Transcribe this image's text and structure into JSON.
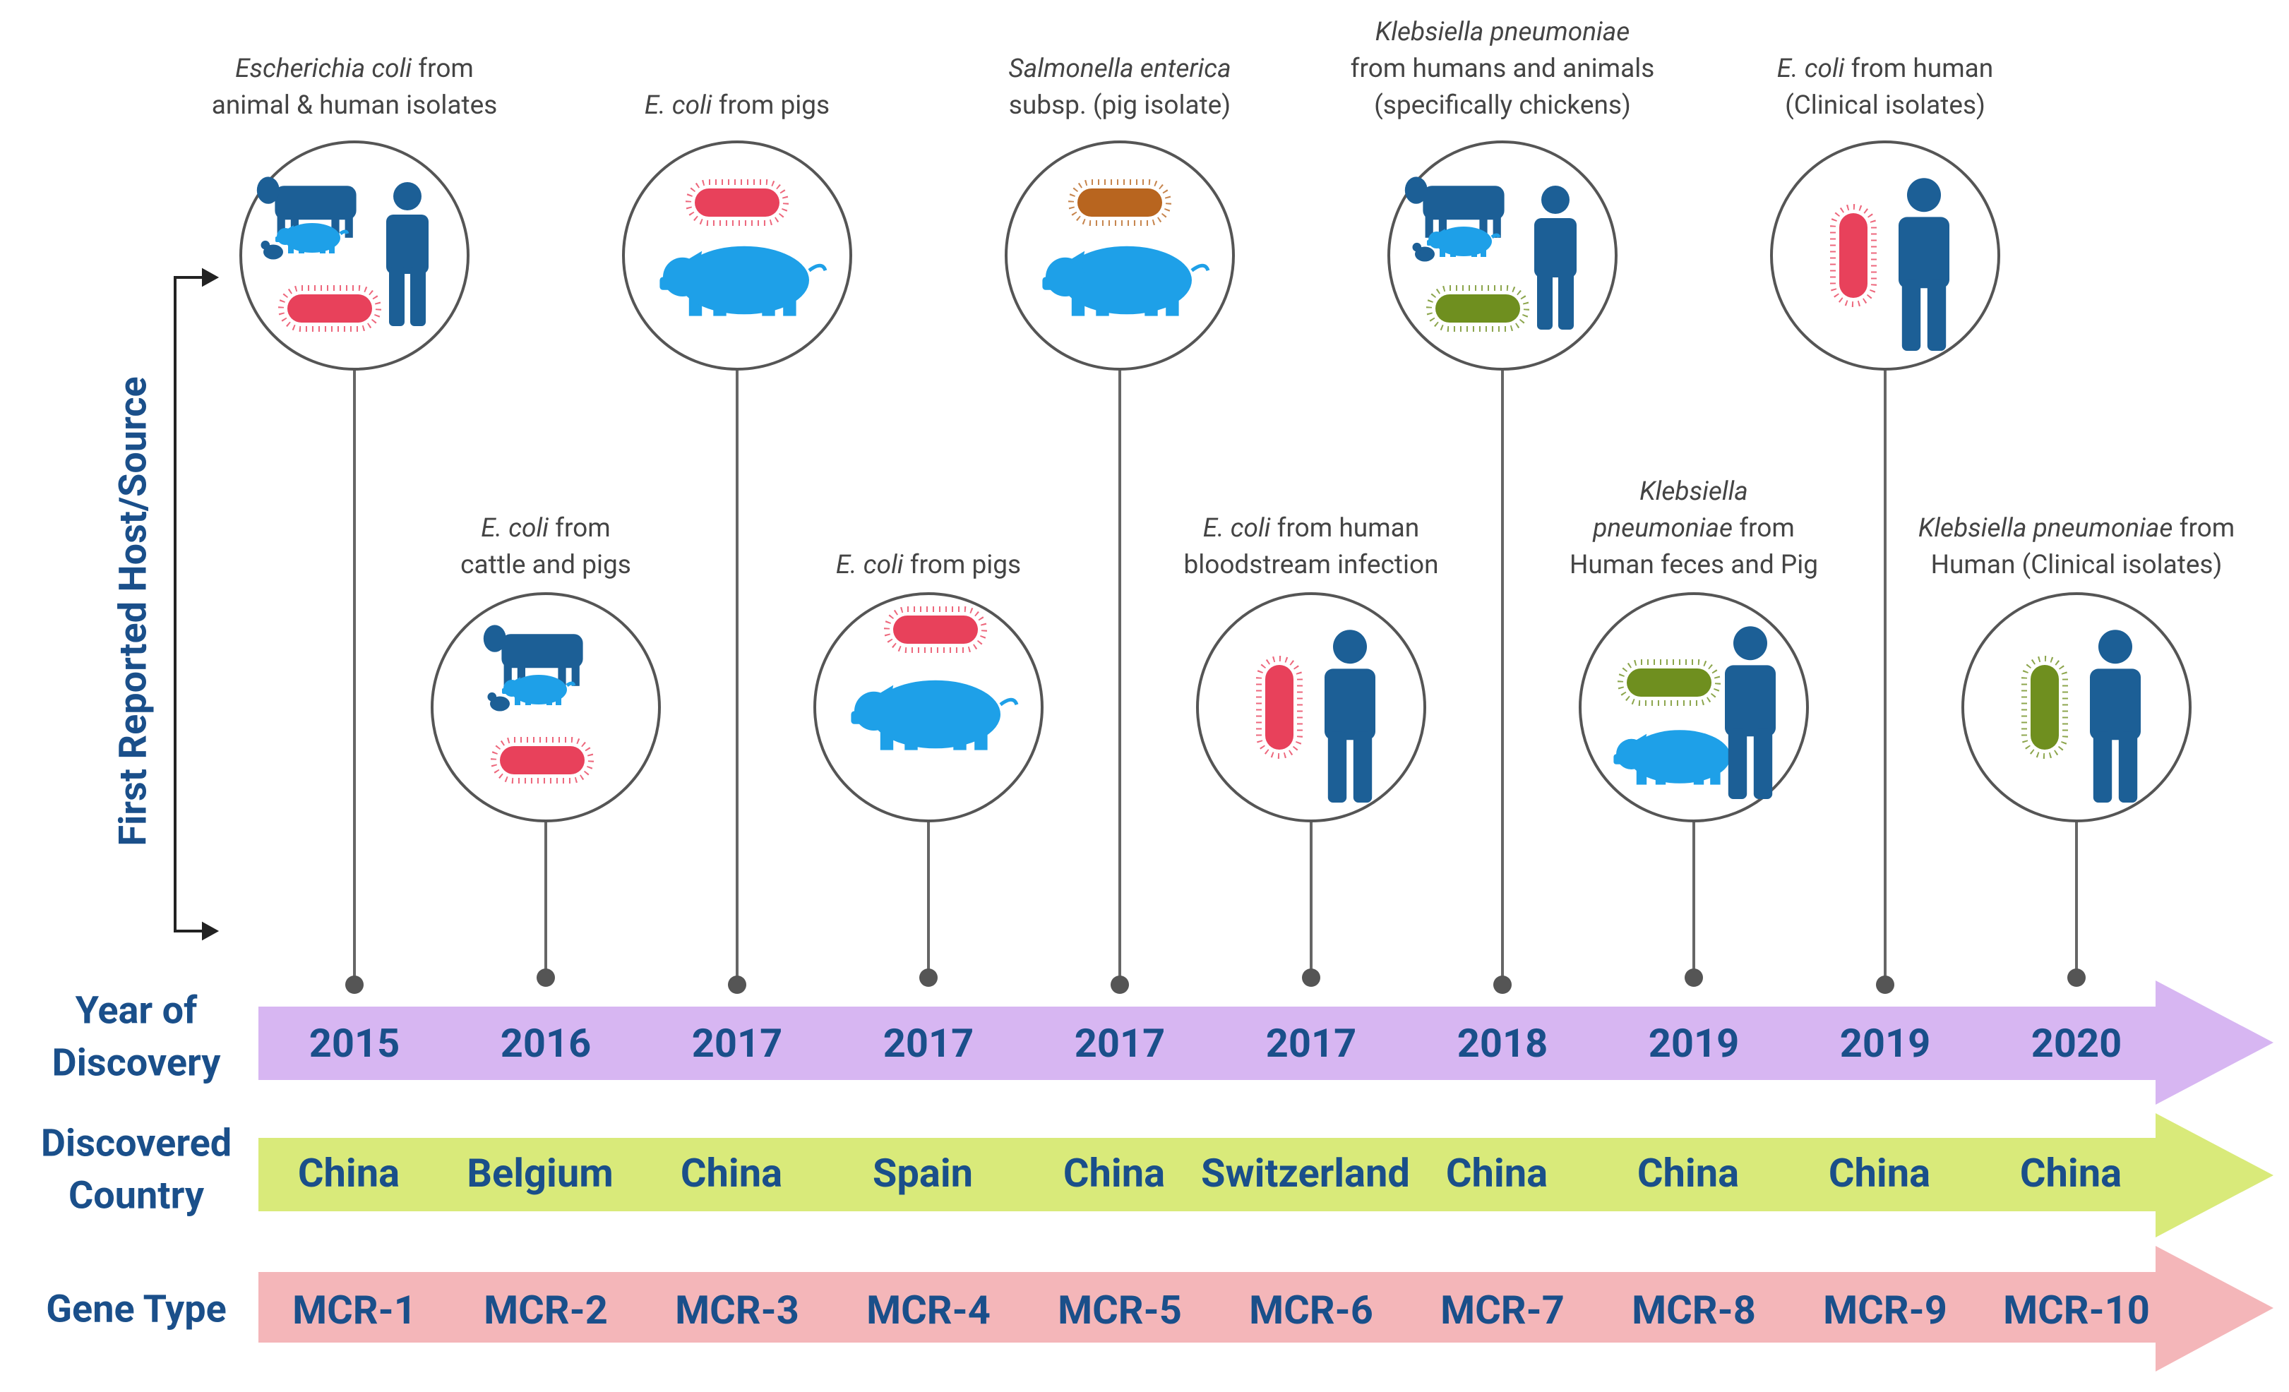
{
  "axis_label": "First Reported Host/Source",
  "row_labels": {
    "year": [
      "Year of",
      "Discovery"
    ],
    "country": [
      "Discovered",
      "Country"
    ],
    "gene": [
      "Gene Type"
    ]
  },
  "entries": [
    {
      "host": [
        [
          {
            "text": "Escherichia coli",
            "italic": true
          },
          {
            "text": " from"
          }
        ],
        [
          {
            "text": "animal & human isolates"
          }
        ]
      ],
      "year": "2015",
      "country": "China",
      "gene": "MCR-1"
    },
    {
      "host": [
        [
          {
            "text": "E. coli",
            "italic": true
          },
          {
            "text": " from"
          }
        ],
        [
          {
            "text": "cattle and pigs"
          }
        ]
      ],
      "year": "2016",
      "country": "Belgium",
      "gene": "MCR-2"
    },
    {
      "host": [
        [
          {
            "text": "E. coli",
            "italic": true
          },
          {
            "text": " from pigs"
          }
        ]
      ],
      "year": "2017",
      "country": "China",
      "gene": "MCR-3"
    },
    {
      "host": [
        [
          {
            "text": "E. coli",
            "italic": true
          },
          {
            "text": " from pigs"
          }
        ]
      ],
      "year": "2017",
      "country": "Spain",
      "gene": "MCR-4"
    },
    {
      "host": [
        [
          {
            "text": "Salmonella enterica",
            "italic": true
          }
        ],
        [
          {
            "text": "subsp. (pig isolate)"
          }
        ]
      ],
      "year": "2017",
      "country": "China",
      "gene": "MCR-5"
    },
    {
      "host": [
        [
          {
            "text": "E. coli",
            "italic": true
          },
          {
            "text": " from human"
          }
        ],
        [
          {
            "text": "bloodstream infection"
          }
        ]
      ],
      "year": "2017",
      "country": "Switzerland",
      "gene": "MCR-6"
    },
    {
      "host": [
        [
          {
            "text": "Klebsiella pneumoniae",
            "italic": true
          }
        ],
        [
          {
            "text": "from humans and animals"
          }
        ],
        [
          {
            "text": "(specifically chickens)"
          }
        ]
      ],
      "year": "2018",
      "country": "China",
      "gene": "MCR-7"
    },
    {
      "host": [
        [
          {
            "text": "Klebsiella",
            "italic": true
          }
        ],
        [
          {
            "text": "pneumoniae",
            "italic": true
          },
          {
            "text": " from"
          }
        ],
        [
          {
            "text": "Human feces and Pig"
          }
        ]
      ],
      "year": "2019",
      "country": "China",
      "gene": "MCR-8"
    },
    {
      "host": [
        [
          {
            "text": "E. coli",
            "italic": true
          },
          {
            "text": " from human"
          }
        ],
        [
          {
            "text": "(Clinical isolates)"
          }
        ]
      ],
      "year": "2019",
      "country": "China",
      "gene": "MCR-9"
    },
    {
      "host": [
        [
          {
            "text": "Klebsiella pneumoniae",
            "italic": true
          },
          {
            "text": " from"
          }
        ],
        [
          {
            "text": "Human (Clinical isolates)"
          }
        ]
      ],
      "year": "2020",
      "country": "China",
      "gene": "MCR-10"
    }
  ]
}
